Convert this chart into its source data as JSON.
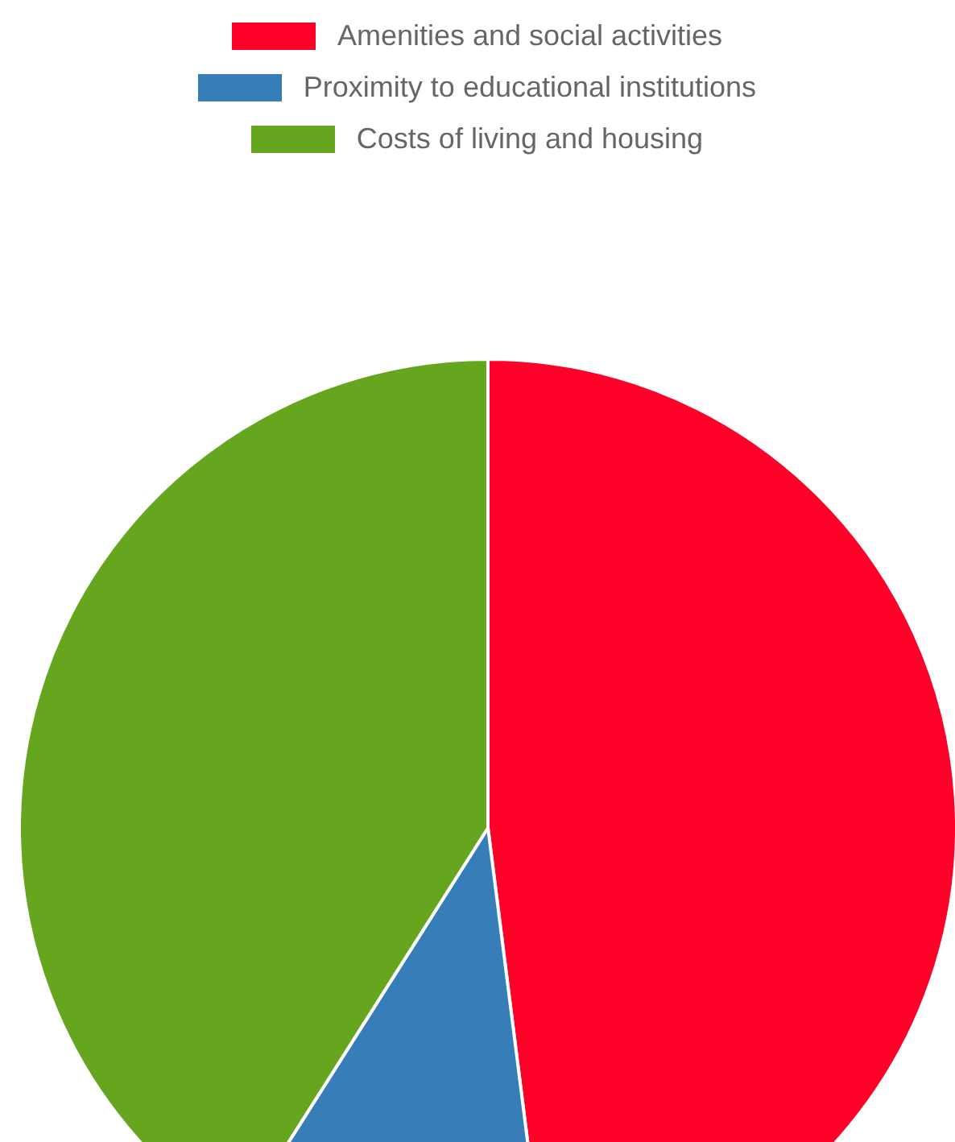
{
  "chart_data": {
    "type": "pie",
    "categories": [
      "Amenities and social activities",
      "Proximity to educational institutions",
      "Costs of living and housing"
    ],
    "values": [
      48,
      11,
      41
    ],
    "colors": [
      "#ff0029",
      "#377eb8",
      "#66a61e"
    ],
    "legend": "top"
  }
}
